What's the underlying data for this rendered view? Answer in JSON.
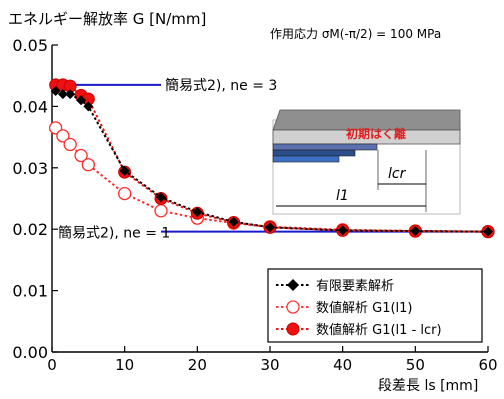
{
  "chart_data": {
    "type": "line",
    "ylabel": "エネルギー解放率 G [N/mm]",
    "xlabel": "段差長 ls [mm]",
    "condition": "作用応力 σM(-π/2) = 100 MPa",
    "xlim": [
      0,
      60
    ],
    "ylim": [
      0,
      0.05
    ],
    "xticks": [
      0,
      10,
      20,
      30,
      40,
      50,
      60
    ],
    "yticks": [
      0.0,
      0.01,
      0.02,
      0.03,
      0.04,
      0.05
    ],
    "ytick_labels": [
      "0.00",
      "0.01",
      "0.02",
      "0.03",
      "0.04",
      "0.05"
    ],
    "xtick_labels": [
      "0",
      "10",
      "20",
      "30",
      "40",
      "50",
      "60"
    ],
    "grid": false,
    "legend_position": "bottom-right",
    "series": [
      {
        "name": "有限要素解析",
        "marker": "diamond",
        "color": "#000000",
        "x": [
          0.5,
          1.5,
          2.5,
          4,
          5,
          10,
          15,
          20,
          25,
          30,
          40,
          50,
          60
        ],
        "y": [
          0.0425,
          0.042,
          0.042,
          0.041,
          0.04,
          0.0295,
          0.0252,
          0.0228,
          0.0212,
          0.0203,
          0.0198,
          0.0197,
          0.0196
        ]
      },
      {
        "name": "数値解析 G1(l1)",
        "marker": "open-circle",
        "color": "#ff2a2a",
        "x": [
          0.5,
          1.5,
          2.5,
          4,
          5,
          10,
          15,
          20,
          25,
          30,
          40,
          50,
          60
        ],
        "y": [
          0.0365,
          0.0352,
          0.0338,
          0.032,
          0.0305,
          0.0258,
          0.023,
          0.0218,
          0.021,
          0.0204,
          0.0199,
          0.0197,
          0.0196
        ]
      },
      {
        "name": "数値解析 G1(l1 - lcr)",
        "marker": "filled-circle",
        "color": "#ee1111",
        "x": [
          0.5,
          1.5,
          2.5,
          4,
          5,
          10,
          15,
          20,
          25,
          30,
          40,
          50,
          60
        ],
        "y": [
          0.0435,
          0.0435,
          0.0433,
          0.0418,
          0.0412,
          0.0293,
          0.025,
          0.0226,
          0.0211,
          0.0203,
          0.0198,
          0.0197,
          0.0196
        ]
      }
    ],
    "reference_lines": [
      {
        "label": "簡易式2), ne = 3",
        "y": 0.0435,
        "x_start": 0,
        "x_end": 15
      },
      {
        "label": "簡易式2), ne = 1",
        "y": 0.0196,
        "x_start": 15,
        "x_end": 60
      }
    ],
    "inset": {
      "crack_label": "初期はく離",
      "lcr_label": "lcr",
      "l1_label": "l1"
    }
  }
}
